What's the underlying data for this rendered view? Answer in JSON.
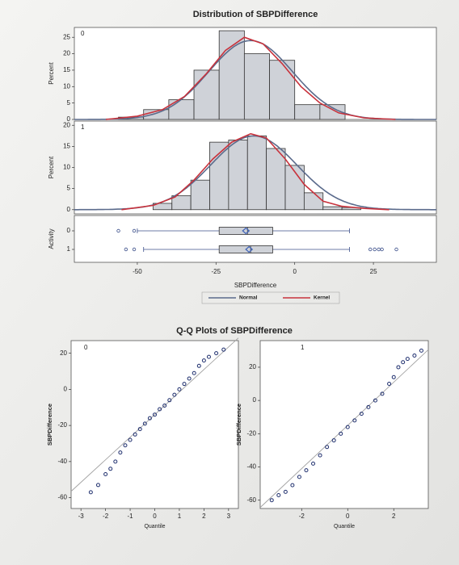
{
  "chart_data": [
    {
      "type": "histogram",
      "title": "Distribution of SBPDifference",
      "panel": "0",
      "ylabel": "Percent",
      "bins": [
        -56,
        -48,
        -40,
        -32,
        -24,
        -16,
        -8,
        0,
        8,
        16
      ],
      "values": [
        0.7,
        3,
        6,
        15,
        27,
        20,
        18,
        4.5,
        4.5
      ],
      "color": "#cfd2d8",
      "xlim": [
        -70,
        45
      ],
      "ylim": [
        0,
        28
      ],
      "yticks": [
        0,
        5,
        10,
        15,
        20,
        25
      ],
      "series": [
        {
          "name": "Normal",
          "color": "#5b6b8c",
          "mean": -14,
          "sd": 13.3
        },
        {
          "name": "Kernel",
          "color": "#c8323c",
          "x": [
            -60,
            -50,
            -42,
            -35,
            -28,
            -22,
            -16,
            -10,
            -4,
            2,
            8,
            14,
            22,
            32
          ],
          "values": [
            0,
            1,
            3,
            7,
            14,
            21,
            25,
            23,
            17,
            10,
            5,
            2,
            0.5,
            0
          ]
        }
      ]
    },
    {
      "type": "histogram",
      "panel": "1",
      "ylabel": "Percent",
      "bins": [
        -45,
        -39,
        -33,
        -27,
        -21,
        -15,
        -9,
        -3,
        3,
        9,
        15,
        21
      ],
      "values": [
        1.5,
        3.3,
        7,
        16,
        16.5,
        17.5,
        14.5,
        10.5,
        4,
        0.7,
        0.5
      ],
      "color": "#cfd2d8",
      "xlim": [
        -70,
        45
      ],
      "ylim": [
        -1,
        21
      ],
      "yticks": [
        0,
        5,
        10,
        15,
        20
      ],
      "series": [
        {
          "color": "#5b6b8c",
          "mean": -13,
          "sd": 13.7
        },
        {
          "color": "#c8323c",
          "x": [
            -55,
            -45,
            -38,
            -32,
            -26,
            -20,
            -14,
            -9,
            -3,
            3,
            9,
            15,
            22,
            30
          ],
          "values": [
            0,
            1,
            3,
            7,
            12,
            16,
            18,
            17,
            12,
            6,
            2,
            0.8,
            0.3,
            0
          ]
        }
      ]
    },
    {
      "type": "box",
      "ylabel": "Activity",
      "xlabel": "SBPDifference",
      "categories": [
        "0",
        "1"
      ],
      "xlim": [
        -70,
        45
      ],
      "xticks": [
        -50,
        -25,
        0,
        25
      ],
      "color": "#cfd2d8",
      "mean_color": "#3f63b8",
      "boxes": [
        {
          "whislo": -50,
          "q1": -24,
          "median": -15,
          "q3": -7,
          "whishi": 17.4,
          "mean": -15.5,
          "outliers": [
            -56,
            -51
          ]
        },
        {
          "whislo": -48,
          "q1": -24,
          "median": -14,
          "q3": -7,
          "whishi": 17.4,
          "mean": -14.5,
          "outliers": [
            -53.6,
            -51,
            24,
            25.4,
            26.7,
            27.7,
            32.3
          ]
        }
      ]
    },
    {
      "type": "qq",
      "title": "Q-Q Plots of SBPDifference",
      "panel": "0",
      "xlabel": "Quantile",
      "ylabel": "SBPDifference",
      "x": [
        -2.6,
        -2.3,
        -2.0,
        -1.8,
        -1.6,
        -1.4,
        -1.2,
        -1.0,
        -0.8,
        -0.6,
        -0.4,
        -0.2,
        0,
        0.2,
        0.4,
        0.6,
        0.8,
        1.0,
        1.2,
        1.4,
        1.6,
        1.8,
        2.0,
        2.2,
        2.5,
        2.8
      ],
      "values": [
        -57,
        -53,
        -47,
        -44,
        -40,
        -35,
        -31,
        -28,
        -25,
        -22,
        -19,
        -16,
        -14,
        -11,
        -9,
        -6,
        -3,
        0,
        3,
        6,
        9,
        13,
        16,
        18,
        20,
        22
      ],
      "color": "#1f2f6e",
      "line_color": "#a0a0a0",
      "reference_line": {
        "intercept": -14,
        "slope": 12.5
      },
      "xlim": [
        -3.4,
        3.4
      ],
      "xticks": [
        -3,
        -2,
        -1,
        0,
        1,
        2,
        3
      ],
      "ylim": [
        -66,
        27
      ],
      "yticks": [
        -60,
        -40,
        -20,
        0,
        20
      ]
    },
    {
      "type": "qq",
      "panel": "1",
      "xlabel": "Quantile",
      "ylabel": "SBPDifference",
      "x": [
        -3.3,
        -3.0,
        -2.7,
        -2.4,
        -2.1,
        -1.8,
        -1.5,
        -1.2,
        -0.9,
        -0.6,
        -0.3,
        0,
        0.3,
        0.6,
        0.9,
        1.2,
        1.5,
        1.8,
        2.0,
        2.2,
        2.4,
        2.6,
        2.9,
        3.2
      ],
      "values": [
        -60,
        -57,
        -55,
        -51,
        -46,
        -42,
        -38,
        -33,
        -28,
        -24,
        -20,
        -16,
        -12,
        -8,
        -4,
        0,
        4,
        10,
        14,
        20,
        23,
        25,
        27,
        30
      ],
      "color": "#1f2f6e",
      "line_color": "#a0a0a0",
      "reference_line": {
        "intercept": -15,
        "slope": 13
      },
      "xlim": [
        -3.8,
        3.5
      ],
      "xticks": [
        -2,
        0,
        2
      ],
      "ylim": [
        -65,
        36
      ],
      "yticks": [
        -60,
        -40,
        -20,
        0,
        20
      ]
    }
  ]
}
